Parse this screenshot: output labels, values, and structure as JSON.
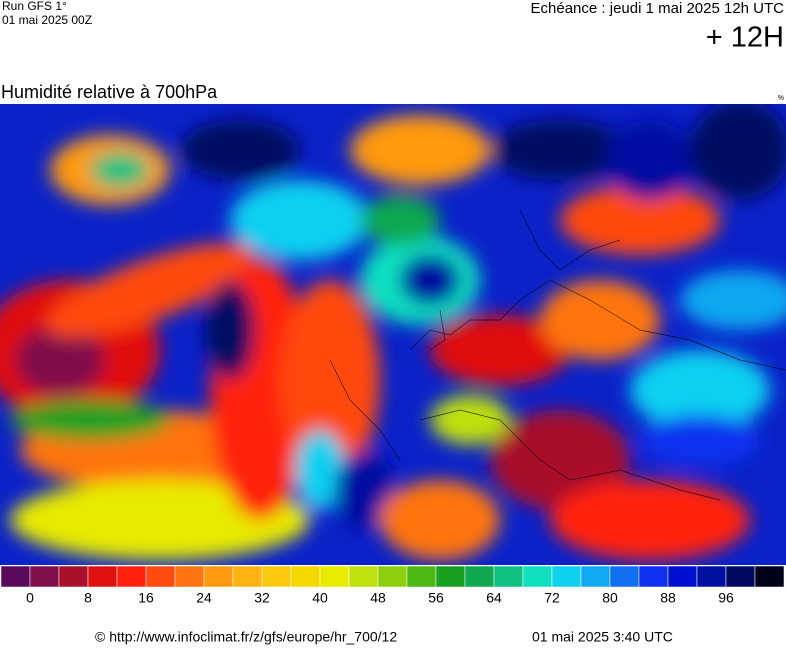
{
  "header": {
    "run": "Run GFS 1°",
    "run_date": "01 mai 2025 00Z",
    "echeance": "Echéance : jeudi 1 mai 2025 12h UTC",
    "offset": "+ 12H"
  },
  "map": {
    "title": "Humidité relative à 700hPa",
    "unit": "%"
  },
  "colorbar": {
    "colors": [
      "#5a0a5a",
      "#80104a",
      "#a8102c",
      "#e01010",
      "#ff2010",
      "#ff4a10",
      "#ff7410",
      "#ff9a10",
      "#ffb310",
      "#ffc810",
      "#f5d800",
      "#e8ea00",
      "#c0e010",
      "#8cd010",
      "#4cb814",
      "#1aa020",
      "#10a850",
      "#10c080",
      "#10e0c0",
      "#10d0f0",
      "#10a8f0",
      "#1070f0",
      "#1030f0",
      "#0010d0",
      "#0010a0",
      "#000860",
      "#000018"
    ],
    "ticks": [
      0,
      8,
      16,
      24,
      32,
      40,
      48,
      56,
      64,
      72,
      80,
      88,
      96
    ]
  },
  "footer": {
    "source": "© http://www.infoclimat.fr/z/gfs/europe/hr_700/12",
    "timestamp": "01 mai 2025  3:40 UTC"
  }
}
